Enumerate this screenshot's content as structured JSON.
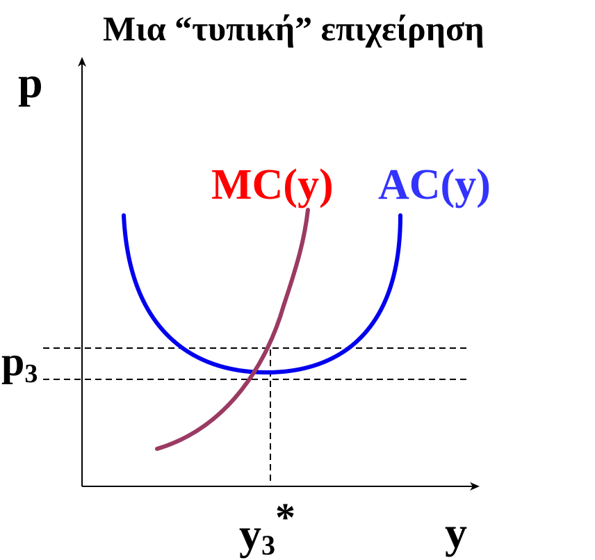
{
  "title": "Μια “τυπική” επιχείρηση",
  "axes": {
    "y_label": "p",
    "x_label": "y"
  },
  "curves": {
    "mc": {
      "label": "MC(y)",
      "color": "#ff0000",
      "stroke": "#9b3a62"
    },
    "ac": {
      "label": "AC(y)",
      "color": "#3333ff",
      "stroke": "#0000ee"
    }
  },
  "markers": {
    "price_base": "p",
    "price_sub": "3",
    "quantity_base": "y",
    "quantity_sub": "3",
    "quantity_star": "*"
  }
}
